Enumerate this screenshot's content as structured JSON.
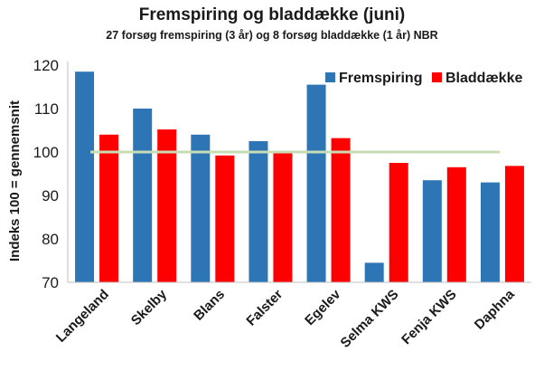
{
  "chart_data": {
    "type": "bar",
    "title": "Fremspiring og bladdække (juni)",
    "subtitle": "27 forsøg fremspiring (3 år) og 8 forsøg bladdække (1 år) NBR",
    "ylabel": "Indeks 100 = gennemsnit",
    "xlabel": "",
    "ylim": [
      70,
      120
    ],
    "yticks": [
      70,
      80,
      90,
      100,
      110,
      120
    ],
    "reference_line": {
      "value": 100,
      "color": "#c5dcb4"
    },
    "categories": [
      "Langeland",
      "Skelby",
      "Blans",
      "Falster",
      "Egelev",
      "Selma KWS",
      "Fenja KWS",
      "Daphna"
    ],
    "series": [
      {
        "name": "Fremspiring",
        "color": "#2e75b6",
        "values": [
          118.5,
          110,
          104,
          102.5,
          115.5,
          74.5,
          93.5,
          93
        ]
      },
      {
        "name": "Bladdække",
        "color": "#ff0000",
        "values": [
          104,
          105.2,
          99.2,
          100.3,
          103.2,
          97.5,
          96.5,
          96.8
        ]
      }
    ],
    "legend_position": "top-right",
    "grid": false
  }
}
